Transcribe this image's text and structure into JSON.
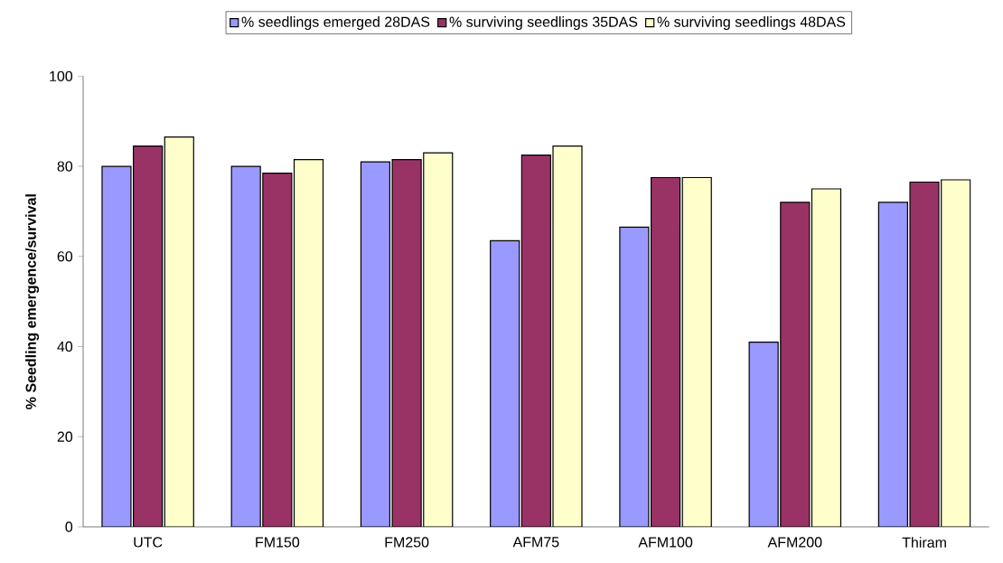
{
  "chart_data": {
    "type": "bar",
    "ylabel": "% Seedling emergence/survival",
    "categories": [
      "UTC",
      "FM150",
      "FM250",
      "AFM75",
      "AFM100",
      "AFM200",
      "Thiram"
    ],
    "series": [
      {
        "name": "%  seedlings emerged 28DAS",
        "color": "#9999ff",
        "values": [
          80,
          80,
          81,
          63.5,
          66.5,
          41,
          72
        ]
      },
      {
        "name": "% surviving seedlings 35DAS",
        "color": "#993366",
        "values": [
          84.5,
          78.5,
          81.5,
          82.5,
          77.5,
          72,
          76.5
        ]
      },
      {
        "name": "% surviving seedlings 48DAS",
        "color": "#ffffcc",
        "values": [
          86.5,
          81.5,
          83,
          84.5,
          77.5,
          75,
          77
        ]
      }
    ],
    "ylim": [
      0,
      100
    ],
    "yticks": [
      0,
      20,
      40,
      60,
      80,
      100
    ],
    "grid": false,
    "legend": "top"
  }
}
